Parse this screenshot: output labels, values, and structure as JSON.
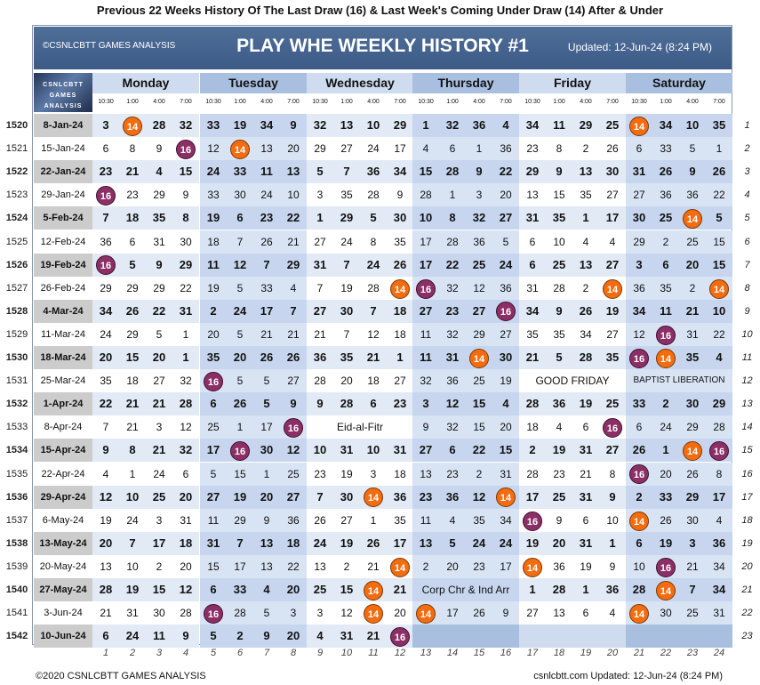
{
  "title": "Previous 22 Weeks History Of The Last Draw (16) & Last Week's Coming Under Draw (14) After & Under",
  "banner": {
    "left": "©CSNLCBTT GAMES ANALYSIS",
    "center": "PLAY WHE WEEKLY HISTORY #1",
    "right": "Updated: 12-Jun-24 (8:24 PM)"
  },
  "logo_text": "CSNLCBTT GAMES ANALYSIS",
  "days": [
    "Monday",
    "Tuesday",
    "Wednesday",
    "Thursday",
    "Friday",
    "Saturday"
  ],
  "times": [
    "10:30",
    "1:00",
    "4:00",
    "7:00"
  ],
  "highlight": {
    "last_draw": "16",
    "coming_under": "14"
  },
  "colors": {
    "mark_14": "#f36c10",
    "mark_16": "#8c2f66",
    "band_shade": "#dfe8f6"
  },
  "rows": [
    {
      "id": "1520",
      "date": "8-Jan-24",
      "no": "1",
      "v": [
        "3",
        "14",
        "28",
        "32",
        "33",
        "19",
        "34",
        "9",
        "32",
        "13",
        "10",
        "29",
        "1",
        "32",
        "36",
        "4",
        "34",
        "11",
        "29",
        "25",
        "14",
        "34",
        "10",
        "35"
      ]
    },
    {
      "id": "1521",
      "date": "15-Jan-24",
      "no": "2",
      "v": [
        "6",
        "8",
        "9",
        "16",
        "12",
        "14",
        "13",
        "20",
        "29",
        "27",
        "24",
        "17",
        "4",
        "6",
        "1",
        "36",
        "23",
        "8",
        "2",
        "26",
        "6",
        "33",
        "5",
        "1"
      ]
    },
    {
      "id": "1522",
      "date": "22-Jan-24",
      "no": "3",
      "v": [
        "23",
        "21",
        "4",
        "15",
        "24",
        "33",
        "11",
        "13",
        "5",
        "7",
        "36",
        "34",
        "15",
        "28",
        "9",
        "22",
        "29",
        "9",
        "13",
        "30",
        "31",
        "26",
        "9",
        "26"
      ]
    },
    {
      "id": "1523",
      "date": "29-Jan-24",
      "no": "4",
      "v": [
        "16",
        "23",
        "29",
        "9",
        "33",
        "30",
        "24",
        "10",
        "3",
        "35",
        "28",
        "9",
        "28",
        "1",
        "3",
        "20",
        "13",
        "15",
        "35",
        "27",
        "27",
        "36",
        "36",
        "22"
      ]
    },
    {
      "id": "1524",
      "date": "5-Feb-24",
      "no": "5",
      "v": [
        "7",
        "18",
        "35",
        "8",
        "19",
        "6",
        "23",
        "22",
        "1",
        "29",
        "5",
        "30",
        "10",
        "8",
        "32",
        "27",
        "31",
        "35",
        "1",
        "17",
        "30",
        "25",
        "14",
        "5"
      ]
    },
    {
      "id": "1525",
      "date": "12-Feb-24",
      "no": "6",
      "v": [
        "36",
        "6",
        "31",
        "30",
        "18",
        "7",
        "26",
        "21",
        "27",
        "24",
        "8",
        "35",
        "17",
        "28",
        "36",
        "5",
        "6",
        "10",
        "4",
        "4",
        "29",
        "2",
        "25",
        "15"
      ]
    },
    {
      "id": "1526",
      "date": "19-Feb-24",
      "no": "7",
      "v": [
        "16",
        "5",
        "9",
        "29",
        "11",
        "12",
        "7",
        "29",
        "31",
        "7",
        "24",
        "26",
        "17",
        "22",
        "25",
        "24",
        "6",
        "25",
        "13",
        "27",
        "3",
        "6",
        "20",
        "15"
      ]
    },
    {
      "id": "1527",
      "date": "26-Feb-24",
      "no": "8",
      "v": [
        "29",
        "29",
        "29",
        "22",
        "19",
        "5",
        "33",
        "4",
        "7",
        "19",
        "28",
        "14",
        "16",
        "32",
        "12",
        "36",
        "31",
        "28",
        "2",
        "14",
        "36",
        "35",
        "2",
        "14"
      ]
    },
    {
      "id": "1528",
      "date": "4-Mar-24",
      "no": "9",
      "v": [
        "34",
        "26",
        "22",
        "31",
        "2",
        "24",
        "17",
        "7",
        "27",
        "30",
        "7",
        "18",
        "27",
        "23",
        "27",
        "16",
        "34",
        "9",
        "26",
        "19",
        "34",
        "11",
        "21",
        "10"
      ]
    },
    {
      "id": "1529",
      "date": "11-Mar-24",
      "no": "10",
      "v": [
        "24",
        "29",
        "5",
        "1",
        "20",
        "5",
        "21",
        "21",
        "21",
        "7",
        "12",
        "18",
        "11",
        "32",
        "29",
        "27",
        "35",
        "35",
        "34",
        "27",
        "12",
        "16",
        "31",
        "22"
      ]
    },
    {
      "id": "1530",
      "date": "18-Mar-24",
      "no": "11",
      "v": [
        "20",
        "15",
        "20",
        "1",
        "35",
        "20",
        "26",
        "26",
        "36",
        "35",
        "21",
        "1",
        "11",
        "31",
        "14",
        "30",
        "21",
        "5",
        "28",
        "35",
        "16",
        "14",
        "35",
        "4"
      ]
    },
    {
      "id": "1531",
      "date": "25-Mar-24",
      "no": "12",
      "v": [
        "35",
        "18",
        "27",
        "32",
        "16",
        "5",
        "5",
        "27",
        "28",
        "20",
        "18",
        "27",
        "32",
        "36",
        "25",
        "19",
        "",
        "",
        "",
        "",
        "",
        "",
        "",
        ""
      ],
      "notes": [
        {
          "col": 16,
          "span": 4,
          "text": "GOOD FRIDAY",
          "cls": "fri"
        },
        {
          "col": 20,
          "span": 4,
          "text": "BAPTIST LIBERATION",
          "cls": "sat"
        }
      ]
    },
    {
      "id": "1532",
      "date": "1-Apr-24",
      "no": "13",
      "v": [
        "22",
        "21",
        "21",
        "28",
        "6",
        "26",
        "5",
        "9",
        "9",
        "28",
        "6",
        "23",
        "3",
        "12",
        "15",
        "4",
        "28",
        "36",
        "19",
        "25",
        "33",
        "2",
        "30",
        "29"
      ]
    },
    {
      "id": "1533",
      "date": "8-Apr-24",
      "no": "14",
      "v": [
        "7",
        "21",
        "3",
        "12",
        "25",
        "1",
        "17",
        "16",
        "",
        "",
        "",
        "",
        "9",
        "32",
        "15",
        "20",
        "18",
        "4",
        "6",
        "16",
        "6",
        "24",
        "29",
        "28"
      ],
      "notes": [
        {
          "col": 8,
          "span": 4,
          "text": "Eid-al-Fitr",
          "cls": "wed"
        }
      ]
    },
    {
      "id": "1534",
      "date": "15-Apr-24",
      "no": "15",
      "v": [
        "9",
        "8",
        "21",
        "32",
        "17",
        "16",
        "30",
        "12",
        "10",
        "31",
        "10",
        "31",
        "27",
        "6",
        "22",
        "15",
        "2",
        "19",
        "31",
        "27",
        "26",
        "1",
        "14",
        "16"
      ]
    },
    {
      "id": "1535",
      "date": "22-Apr-24",
      "no": "16",
      "v": [
        "4",
        "1",
        "24",
        "6",
        "5",
        "15",
        "1",
        "25",
        "23",
        "19",
        "3",
        "18",
        "13",
        "23",
        "2",
        "31",
        "28",
        "23",
        "21",
        "8",
        "16",
        "20",
        "26",
        "8"
      ]
    },
    {
      "id": "1536",
      "date": "29-Apr-24",
      "no": "17",
      "v": [
        "12",
        "10",
        "25",
        "20",
        "27",
        "19",
        "20",
        "27",
        "7",
        "30",
        "14",
        "36",
        "23",
        "36",
        "12",
        "14",
        "17",
        "25",
        "31",
        "9",
        "2",
        "33",
        "29",
        "17"
      ]
    },
    {
      "id": "1537",
      "date": "6-May-24",
      "no": "18",
      "v": [
        "19",
        "24",
        "3",
        "31",
        "11",
        "29",
        "9",
        "36",
        "26",
        "27",
        "1",
        "35",
        "11",
        "4",
        "35",
        "34",
        "16",
        "9",
        "6",
        "10",
        "14",
        "26",
        "30",
        "4"
      ]
    },
    {
      "id": "1538",
      "date": "13-May-24",
      "no": "19",
      "v": [
        "20",
        "7",
        "17",
        "18",
        "31",
        "7",
        "13",
        "18",
        "24",
        "19",
        "26",
        "17",
        "13",
        "5",
        "24",
        "24",
        "19",
        "20",
        "31",
        "1",
        "6",
        "19",
        "3",
        "36"
      ]
    },
    {
      "id": "1539",
      "date": "20-May-24",
      "no": "20",
      "v": [
        "13",
        "10",
        "2",
        "20",
        "15",
        "17",
        "13",
        "22",
        "13",
        "2",
        "21",
        "14",
        "2",
        "20",
        "23",
        "17",
        "14",
        "36",
        "19",
        "9",
        "10",
        "16",
        "21",
        "34"
      ]
    },
    {
      "id": "1540",
      "date": "27-May-24",
      "no": "21",
      "v": [
        "28",
        "19",
        "15",
        "12",
        "6",
        "33",
        "4",
        "20",
        "25",
        "15",
        "14",
        "21",
        "",
        "",
        "",
        "",
        "1",
        "28",
        "1",
        "36",
        "28",
        "14",
        "7",
        "34"
      ],
      "notes": [
        {
          "col": 12,
          "span": 4,
          "text": "Corp Chr & Ind Arr",
          "cls": "thu"
        }
      ]
    },
    {
      "id": "1541",
      "date": "3-Jun-24",
      "no": "22",
      "v": [
        "21",
        "31",
        "30",
        "28",
        "16",
        "28",
        "5",
        "3",
        "3",
        "12",
        "14",
        "20",
        "14",
        "17",
        "26",
        "9",
        "27",
        "13",
        "6",
        "4",
        "14",
        "30",
        "25",
        "31"
      ]
    },
    {
      "id": "1542",
      "date": "10-Jun-24",
      "no": "23",
      "v": [
        "6",
        "24",
        "11",
        "9",
        "5",
        "2",
        "9",
        "20",
        "4",
        "31",
        "21",
        "16",
        "",
        "",
        "",
        "",
        "",
        "",
        "",
        "",
        "",
        "",
        "",
        ""
      ]
    }
  ],
  "column_numbers": [
    "1",
    "2",
    "3",
    "4",
    "5",
    "6",
    "7",
    "8",
    "9",
    "10",
    "11",
    "12",
    "13",
    "14",
    "15",
    "16",
    "17",
    "18",
    "19",
    "20",
    "21",
    "22",
    "23",
    "24"
  ],
  "footer": {
    "left": "©2020 CSNLCBTT GAMES ANALYSIS",
    "right": "csnlcbtt.com Updated: 12-Jun-24 (8:24 PM)"
  }
}
